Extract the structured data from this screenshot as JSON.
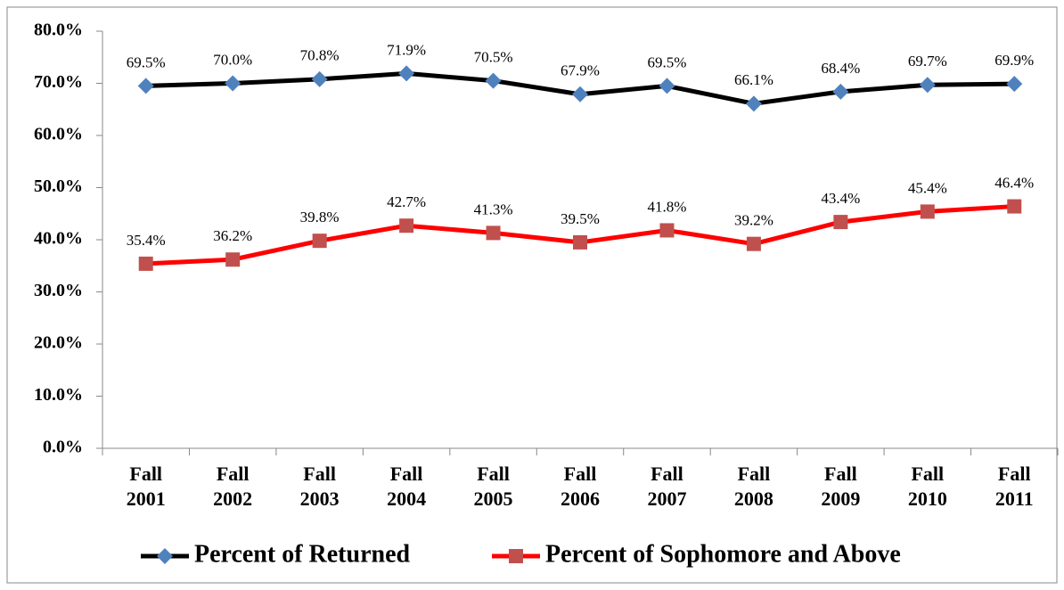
{
  "chart_data": {
    "type": "line",
    "categories": [
      "Fall 2001",
      "Fall 2002",
      "Fall 2003",
      "Fall 2004",
      "Fall 2005",
      "Fall 2006",
      "Fall 2007",
      "Fall 2008",
      "Fall 2009",
      "Fall 2010",
      "Fall 2011"
    ],
    "series": [
      {
        "name": "Percent of Returned",
        "color": "#000000",
        "marker": "diamond",
        "marker_color": "#4f81bd",
        "values": [
          69.5,
          70.0,
          70.8,
          71.9,
          70.5,
          67.9,
          69.5,
          66.1,
          68.4,
          69.7,
          69.9
        ],
        "value_labels": [
          "69.5%",
          "70.0%",
          "70.8%",
          "71.9%",
          "70.5%",
          "67.9%",
          "69.5%",
          "66.1%",
          "68.4%",
          "69.7%",
          "69.9%"
        ]
      },
      {
        "name": "Percent of Sophomore and Above",
        "color": "#ff0000",
        "marker": "square",
        "marker_color": "#c0504d",
        "values": [
          35.4,
          36.2,
          39.8,
          42.7,
          41.3,
          39.5,
          41.8,
          39.2,
          43.4,
          45.4,
          46.4
        ],
        "value_labels": [
          "35.4%",
          "36.2%",
          "39.8%",
          "42.7%",
          "41.3%",
          "39.5%",
          "41.8%",
          "39.2%",
          "43.4%",
          "45.4%",
          "46.4%"
        ]
      }
    ],
    "ylim": [
      0,
      80
    ],
    "yticks": [
      {
        "value": 0,
        "label": "0.0%"
      },
      {
        "value": 10,
        "label": "10.0%"
      },
      {
        "value": 20,
        "label": "20.0%"
      },
      {
        "value": 30,
        "label": "30.0%"
      },
      {
        "value": 40,
        "label": "40.0%"
      },
      {
        "value": 50,
        "label": "50.0%"
      },
      {
        "value": 60,
        "label": "60.0%"
      },
      {
        "value": 70,
        "label": "70.0%"
      },
      {
        "value": 80,
        "label": "80.0%"
      }
    ],
    "grid": false,
    "legend": "bottom"
  }
}
